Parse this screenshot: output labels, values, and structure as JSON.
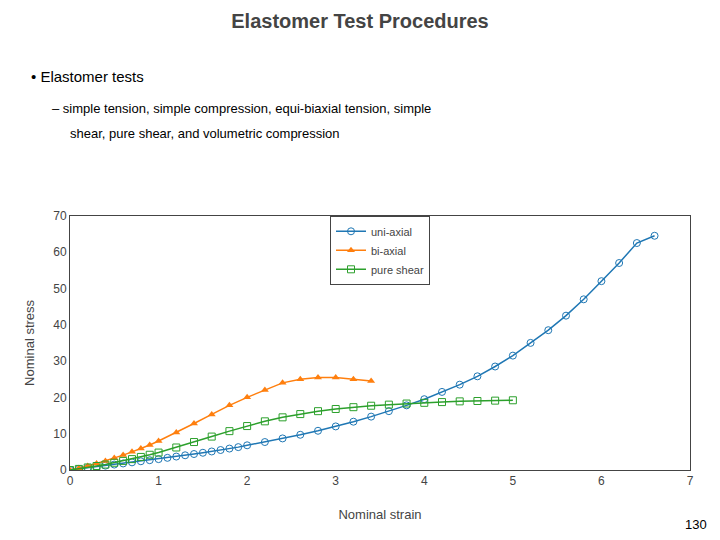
{
  "chart_data": {
    "type": "line",
    "title": "Elastomer Test Procedures",
    "annotations": [
      "• Elastomer tests",
      "– simple tension, simple compression, equi-biaxial tension, simple",
      "shear, pure shear, and volumetric compression",
      "130"
    ],
    "xlabel": "Nominal strain",
    "ylabel": "Nominal stress",
    "xlim": [
      0,
      7
    ],
    "ylim": [
      0,
      70
    ],
    "xticks": [
      0,
      1,
      2,
      3,
      4,
      5,
      6,
      7
    ],
    "yticks": [
      0,
      10,
      20,
      30,
      40,
      50,
      60,
      70
    ],
    "grid": false,
    "legend": "upper center",
    "series": [
      {
        "name": "uni-axial",
        "marker": "circle-open",
        "x": [
          0.0,
          0.1,
          0.2,
          0.3,
          0.4,
          0.5,
          0.6,
          0.7,
          0.8,
          0.9,
          1.0,
          1.1,
          1.2,
          1.3,
          1.4,
          1.5,
          1.6,
          1.7,
          1.8,
          1.9,
          2.0,
          2.2,
          2.4,
          2.6,
          2.8,
          3.0,
          3.2,
          3.4,
          3.6,
          3.8,
          4.0,
          4.2,
          4.4,
          4.6,
          4.8,
          5.0,
          5.2,
          5.4,
          5.6,
          5.8,
          6.0,
          6.2,
          6.4,
          6.6
        ],
        "values": [
          0.0,
          0.3,
          0.6,
          0.9,
          1.2,
          1.5,
          1.8,
          2.1,
          2.4,
          2.7,
          3.0,
          3.35,
          3.7,
          4.05,
          4.4,
          4.75,
          5.1,
          5.5,
          5.9,
          6.3,
          6.8,
          7.7,
          8.7,
          9.7,
          10.8,
          12.0,
          13.3,
          14.7,
          16.2,
          17.8,
          19.5,
          21.5,
          23.5,
          25.8,
          28.5,
          31.5,
          35.0,
          38.5,
          42.5,
          47.0,
          52.0,
          57.0,
          62.5,
          64.5
        ]
      },
      {
        "name": "bi-axial",
        "marker": "triangle-up",
        "x": [
          0.0,
          0.1,
          0.2,
          0.3,
          0.4,
          0.5,
          0.6,
          0.7,
          0.8,
          0.9,
          1.0,
          1.2,
          1.4,
          1.6,
          1.8,
          2.0,
          2.2,
          2.4,
          2.6,
          2.8,
          3.0,
          3.2,
          3.4
        ],
        "values": [
          0.0,
          0.5,
          1.1,
          1.8,
          2.5,
          3.3,
          4.1,
          5.0,
          5.9,
          6.9,
          8.0,
          10.3,
          12.8,
          15.3,
          17.8,
          20.0,
          22.0,
          24.0,
          25.0,
          25.5,
          25.5,
          25.0,
          24.5
        ]
      },
      {
        "name": "pure shear",
        "marker": "square-open",
        "x": [
          0.0,
          0.1,
          0.2,
          0.3,
          0.4,
          0.5,
          0.6,
          0.7,
          0.8,
          0.9,
          1.0,
          1.2,
          1.4,
          1.6,
          1.8,
          2.0,
          2.2,
          2.4,
          2.6,
          2.8,
          3.0,
          3.2,
          3.4,
          3.6,
          3.8,
          4.0,
          4.2,
          4.4,
          4.6,
          4.8,
          5.0
        ],
        "values": [
          0.0,
          0.3,
          0.7,
          1.1,
          1.5,
          2.0,
          2.5,
          3.0,
          3.6,
          4.2,
          4.8,
          6.2,
          7.7,
          9.2,
          10.7,
          12.1,
          13.4,
          14.5,
          15.4,
          16.2,
          16.8,
          17.3,
          17.7,
          18.0,
          18.3,
          18.5,
          18.7,
          18.9,
          19.0,
          19.1,
          19.2
        ]
      }
    ]
  }
}
